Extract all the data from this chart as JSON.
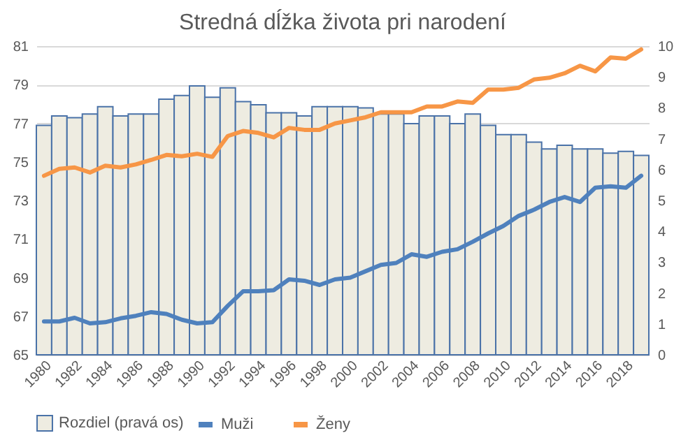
{
  "chart_data": {
    "type": "line",
    "title": "Stredná dĺžka života pri narodení",
    "categories": [
      "1980",
      null,
      "1982",
      null,
      "1984",
      null,
      "1986",
      null,
      "1988",
      null,
      "1990",
      null,
      "1992",
      null,
      "1994",
      null,
      "1996",
      null,
      "1998",
      null,
      "2000",
      null,
      "2002",
      null,
      "2004",
      null,
      "2006",
      null,
      "2008",
      null,
      "2010",
      null,
      "2012",
      null,
      "2014",
      null,
      "2016",
      null,
      "2018",
      null
    ],
    "series": [
      {
        "name": "Rozdiel (pravá os)",
        "type": "bar",
        "axis": "y2",
        "color": "#eeece1",
        "values": [
          7.43,
          7.74,
          7.68,
          7.8,
          8.04,
          7.74,
          7.8,
          7.8,
          8.28,
          8.4,
          8.71,
          8.34,
          8.65,
          8.2,
          8.1,
          7.84,
          7.84,
          7.74,
          8.04,
          8.04,
          8.04,
          8.0,
          7.8,
          7.8,
          7.49,
          7.74,
          7.74,
          7.49,
          7.8,
          7.43,
          7.13,
          7.13,
          6.89,
          6.67,
          6.79,
          6.67,
          6.67,
          6.53,
          6.59,
          6.46
        ]
      },
      {
        "name": "Muži",
        "color": "#4f81bd",
        "values": [
          66.73,
          66.73,
          66.92,
          66.63,
          66.69,
          66.89,
          67.02,
          67.21,
          67.12,
          66.82,
          66.63,
          66.69,
          67.54,
          68.29,
          68.29,
          68.35,
          68.91,
          68.84,
          68.62,
          68.91,
          69.0,
          69.33,
          69.66,
          69.76,
          70.21,
          70.08,
          70.34,
          70.47,
          70.86,
          71.29,
          71.68,
          72.2,
          72.52,
          72.92,
          73.18,
          72.92,
          73.66,
          73.73,
          73.66,
          74.28
        ]
      },
      {
        "name": "Ženy",
        "color": "#f79646",
        "values": [
          74.28,
          74.64,
          74.71,
          74.45,
          74.8,
          74.71,
          74.87,
          75.1,
          75.36,
          75.29,
          75.42,
          75.26,
          76.34,
          76.6,
          76.5,
          76.27,
          76.76,
          76.66,
          76.66,
          76.99,
          77.15,
          77.31,
          77.57,
          77.57,
          77.57,
          77.87,
          77.87,
          78.13,
          78.06,
          78.75,
          78.75,
          78.84,
          79.27,
          79.36,
          79.59,
          79.98,
          79.69,
          80.41,
          80.35,
          80.83
        ]
      }
    ],
    "ylim": [
      65,
      81
    ],
    "yticks": [
      65,
      67,
      69,
      71,
      73,
      75,
      77,
      79,
      81
    ],
    "y2lim": [
      0,
      10
    ],
    "y2ticks": [
      0,
      1,
      2,
      3,
      4,
      5,
      6,
      7,
      8,
      9,
      10
    ],
    "grid": "y",
    "legend": "bottom"
  }
}
